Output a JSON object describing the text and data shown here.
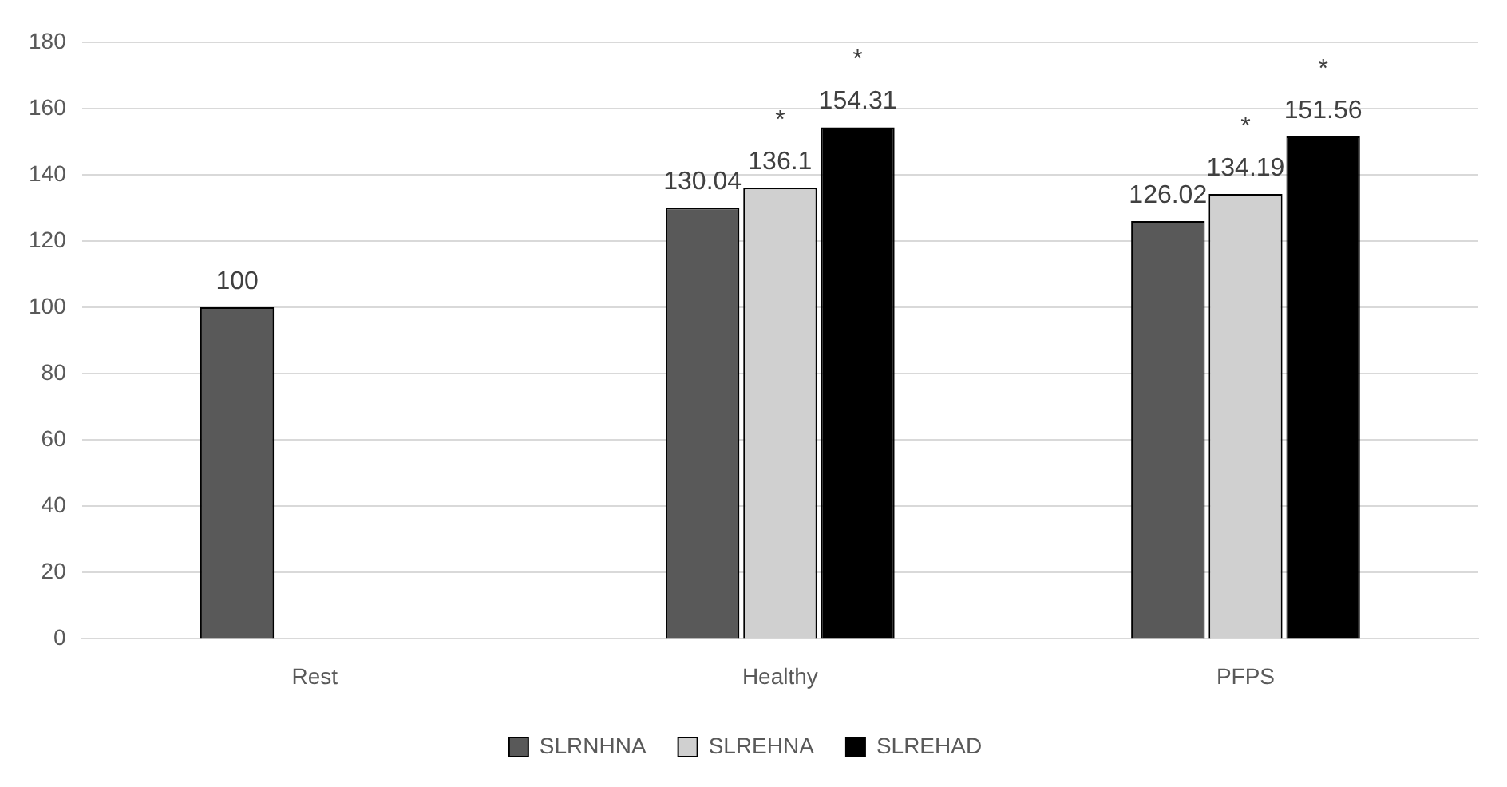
{
  "chart_data": {
    "type": "bar",
    "categories": [
      "Rest",
      "Healthy",
      "PFPS"
    ],
    "series": [
      {
        "name": "SLRNHNA",
        "color": "#595959",
        "values": [
          100,
          130.04,
          126.02
        ],
        "value_labels": [
          "100",
          "130.04",
          "126.02"
        ]
      },
      {
        "name": "SLREHNA",
        "color": "#d0d0d0",
        "values": [
          null,
          136.1,
          134.19
        ],
        "value_labels": [
          null,
          "*\n136.1",
          "*\n134.19"
        ]
      },
      {
        "name": "SLREHAD",
        "color": "#000000",
        "values": [
          null,
          154.31,
          151.56
        ],
        "value_labels": [
          null,
          "*\n154.31",
          "*\n151.56"
        ]
      }
    ],
    "ylim": [
      0,
      180
    ],
    "yticks": [
      0,
      20,
      40,
      60,
      80,
      100,
      120,
      140,
      160,
      180
    ],
    "grid": "y",
    "legend": "bottom"
  }
}
